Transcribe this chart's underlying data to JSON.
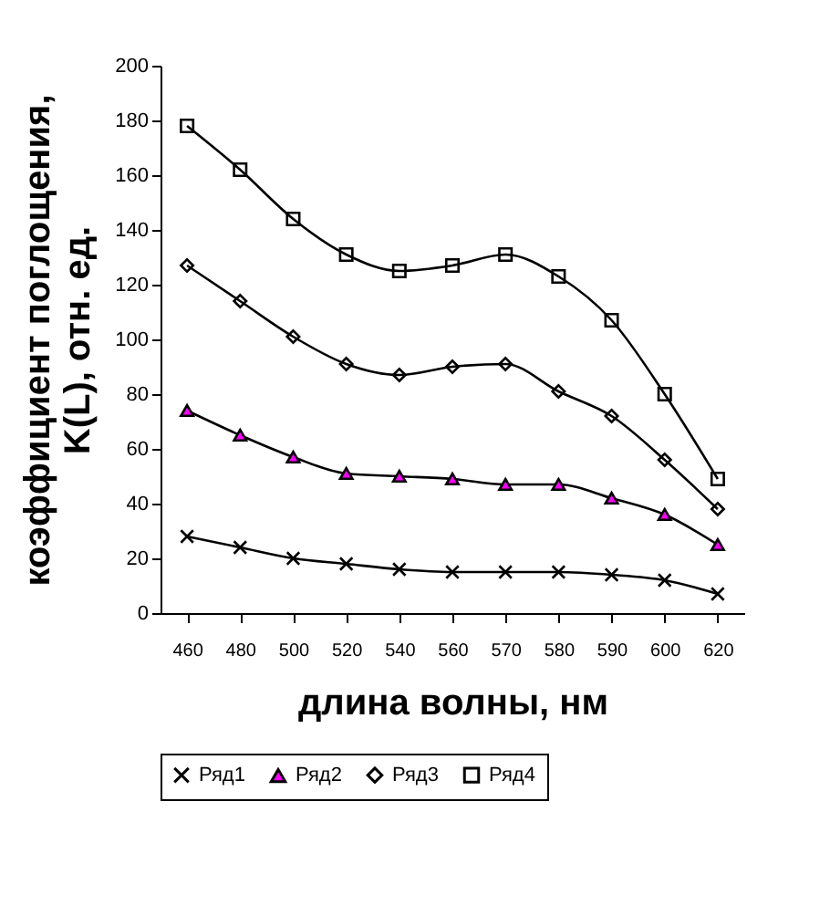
{
  "chart_data": {
    "type": "line",
    "xlabel": "длина волны, нм",
    "ylabel": "коэффициент поглощения,\nK(L), отн. ед.",
    "categories": [
      "460",
      "480",
      "500",
      "520",
      "540",
      "560",
      "570",
      "580",
      "590",
      "600",
      "620"
    ],
    "series": [
      {
        "name": "Ряд1",
        "color": "#000000",
        "marker": "cross",
        "values": [
          28,
          24,
          20,
          18,
          16,
          15,
          15,
          15,
          14,
          12,
          7
        ]
      },
      {
        "name": "Ряд2",
        "color": "#ff00ff",
        "marker": "triangle",
        "values": [
          74,
          65,
          57,
          51,
          50,
          49,
          47,
          47,
          42,
          36,
          25
        ]
      },
      {
        "name": "Ряд3",
        "color": "#000000",
        "marker": "diamond",
        "values": [
          127,
          114,
          101,
          91,
          87,
          90,
          91,
          81,
          72,
          56,
          38
        ]
      },
      {
        "name": "Ряд4",
        "color": "#000000",
        "marker": "square",
        "values": [
          178,
          162,
          144,
          131,
          125,
          127,
          131,
          123,
          107,
          80,
          49
        ]
      }
    ],
    "ylim": [
      0,
      200
    ],
    "yticks": [
      0,
      20,
      40,
      60,
      80,
      100,
      120,
      140,
      160,
      180,
      200
    ],
    "grid": false,
    "legend": "bottom",
    "line_style": "solid"
  }
}
